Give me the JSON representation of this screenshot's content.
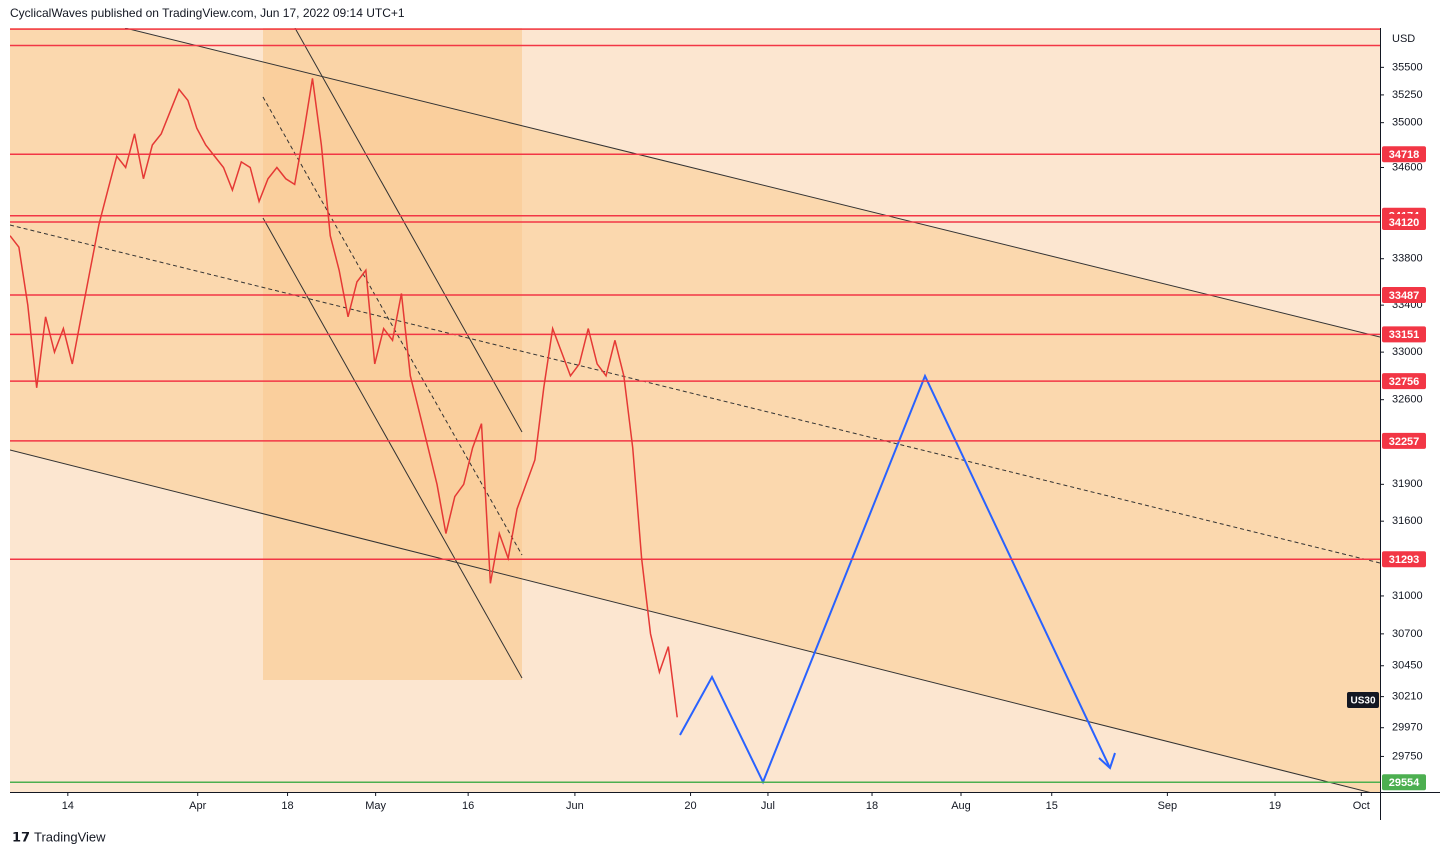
{
  "header": "CyclicalWaves published on TradingView.com, Jun 17, 2022 09:14 UTC+1",
  "footer": "TradingView",
  "chart_data": {
    "type": "line",
    "currency": "USD",
    "symbol": "US30",
    "log_scale": true,
    "color": "#e53935",
    "x": [
      0,
      1,
      2,
      3,
      4,
      5,
      6,
      7,
      8,
      9,
      10,
      11,
      12,
      13,
      14,
      15,
      16,
      17,
      18,
      19,
      20,
      21,
      22,
      23,
      24,
      25,
      26,
      27,
      28,
      29,
      30,
      31,
      32,
      33,
      34,
      35,
      36,
      37,
      38,
      39,
      40,
      41,
      42,
      43,
      44,
      45,
      46,
      47,
      48,
      49,
      50,
      51,
      52,
      53,
      54,
      55,
      56,
      57,
      58,
      59,
      60,
      61,
      62,
      63,
      64,
      65,
      66,
      67,
      68,
      69,
      70,
      71,
      72,
      73,
      74,
      75
    ],
    "values": [
      34000,
      33900,
      33400,
      32700,
      33300,
      33000,
      33200,
      32900,
      33300,
      33700,
      34100,
      34400,
      34700,
      34600,
      34900,
      34500,
      34800,
      34900,
      35100,
      35300,
      35200,
      34950,
      34800,
      34700,
      34600,
      34400,
      34650,
      34600,
      34300,
      34500,
      34600,
      34500,
      34450,
      34900,
      35400,
      34800,
      34000,
      33700,
      33300,
      33600,
      33700,
      32900,
      33200,
      33100,
      33500,
      32800,
      32500,
      32200,
      31900,
      31500,
      31800,
      31900,
      32200,
      32400,
      31100,
      31500,
      31300,
      31700,
      31900,
      32100,
      32700,
      33200,
      33000,
      32800,
      32900,
      33200,
      32900,
      32800,
      33100,
      32800,
      32200,
      31300,
      30700,
      30400,
      30600,
      30050
    ],
    "xlim": [
      0,
      154
    ],
    "xticks": [
      {
        "value": 6.5,
        "label": "14"
      },
      {
        "value": 21.1,
        "label": "Apr"
      },
      {
        "value": 31.2,
        "label": "18"
      },
      {
        "value": 41.1,
        "label": "May"
      },
      {
        "value": 51.5,
        "label": "16"
      },
      {
        "value": 63.5,
        "label": "Jun"
      },
      {
        "value": 76.5,
        "label": "20"
      },
      {
        "value": 85.2,
        "label": "Jul"
      },
      {
        "value": 96.9,
        "label": "18"
      },
      {
        "value": 106.9,
        "label": "Aug"
      },
      {
        "value": 117.1,
        "label": "15"
      },
      {
        "value": 130.1,
        "label": "Sep"
      },
      {
        "value": 142.2,
        "label": "19"
      },
      {
        "value": 151.9,
        "label": "Oct"
      }
    ],
    "ylim": [
      29480,
      35860
    ],
    "yticks": [
      35500,
      35250,
      35000,
      34600,
      33800,
      33400,
      33000,
      32600,
      31900,
      31600,
      31000,
      30700,
      30450,
      30210,
      29970,
      29750
    ],
    "levels": [
      34718,
      34174,
      34120,
      33487,
      33151,
      32756,
      32257,
      31293
    ],
    "level_color": "#f23645",
    "extra_levels": [
      35850,
      35700
    ],
    "support": 29554,
    "support_color": "#4caf50"
  }
}
